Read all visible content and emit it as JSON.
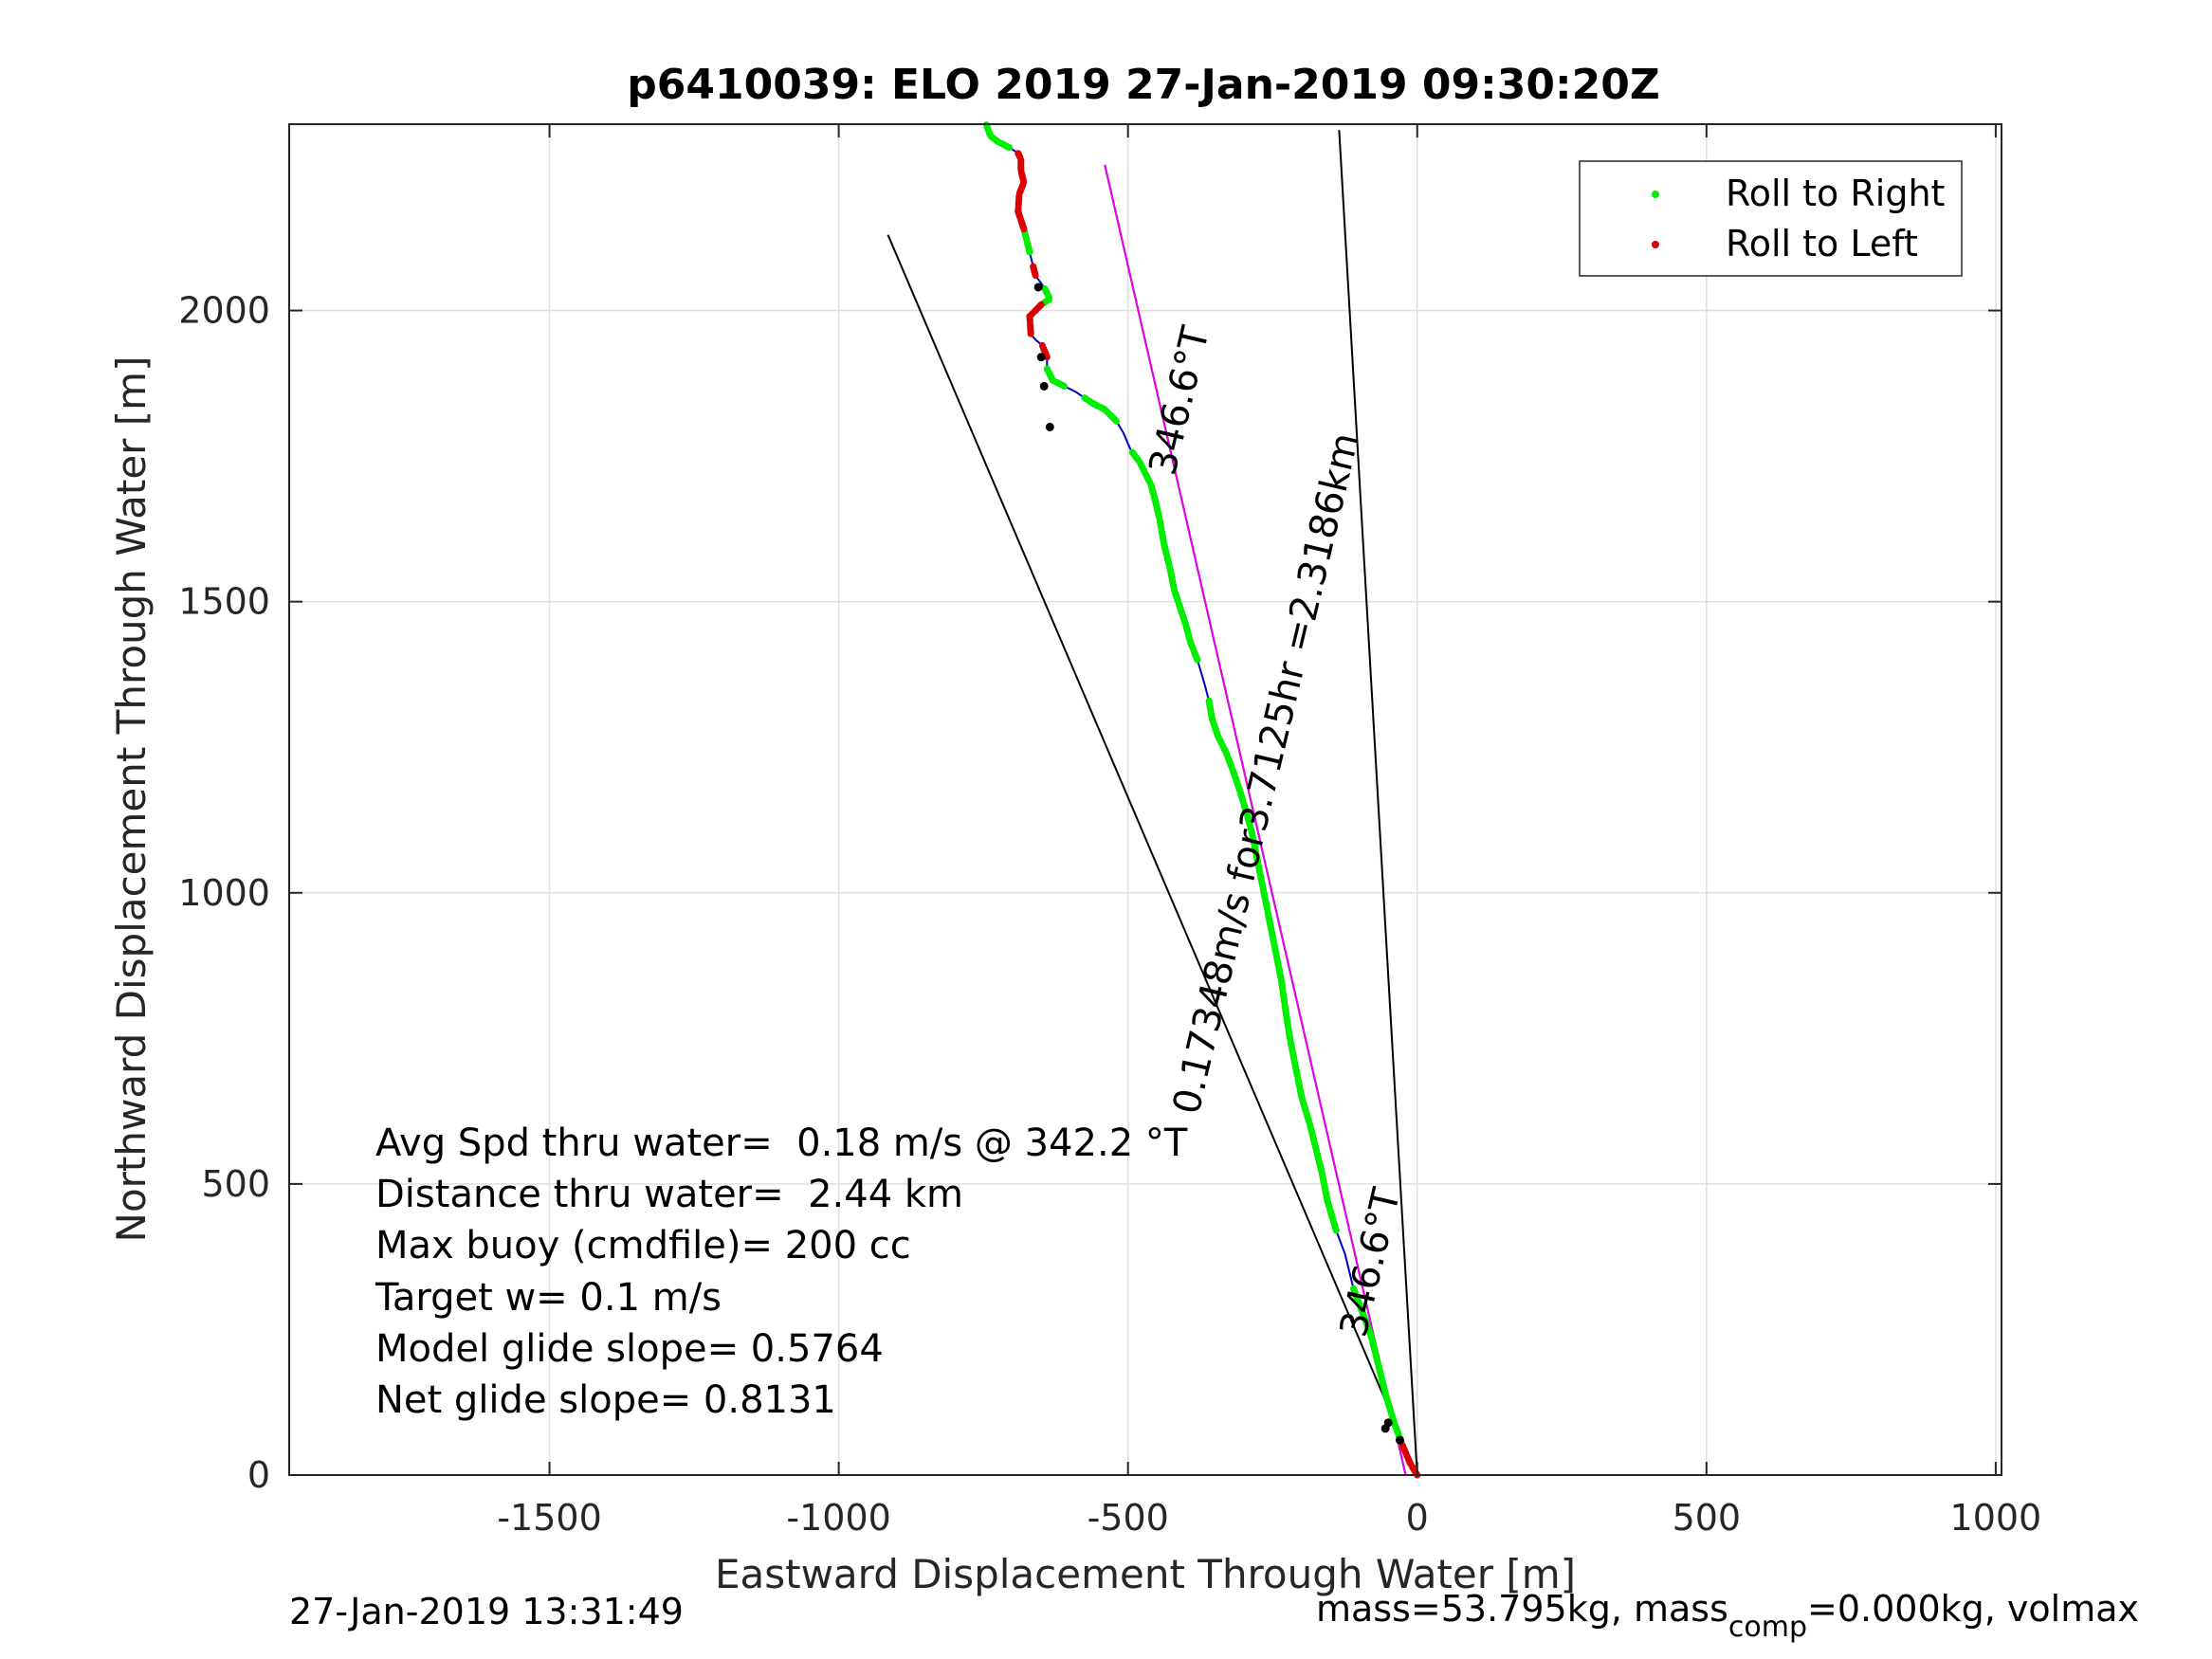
{
  "chart_data": {
    "type": "line",
    "title": "p6410039: ELO 2019 27-Jan-2019 09:30:20Z",
    "xlabel": "Eastward Displacement Through Water [m]",
    "ylabel": "Northward Displacement Through Water [m]",
    "xlim": [
      -1950,
      1010
    ],
    "ylim": [
      0,
      2320
    ],
    "xticks": [
      -1500,
      -1000,
      -500,
      0,
      500,
      1000
    ],
    "yticks": [
      0,
      500,
      1000,
      1500,
      2000
    ],
    "grid": true,
    "legend_position": "top-right",
    "legend": [
      {
        "label": "Roll to Right",
        "color": "#00ee00"
      },
      {
        "label": "Roll to Left",
        "color": "#dd0000"
      }
    ],
    "track": {
      "x": [
        0,
        -12,
        -25,
        -40,
        -55,
        -70,
        -80,
        -95,
        -110,
        -125,
        -140,
        -155,
        -165,
        -175,
        -185,
        -200,
        -210,
        -220,
        -228,
        -235,
        -245,
        -255,
        -265,
        -275,
        -285,
        -293,
        -305,
        -315,
        -330,
        -345,
        -355,
        -360,
        -368,
        -380,
        -392,
        -400,
        -410,
        -420,
        -428,
        -438,
        -445,
        -452,
        -460,
        -470,
        -480,
        -495,
        -508,
        -520,
        -540,
        -560,
        -575,
        -590,
        -610,
        -630,
        -640,
        -640,
        -648,
        -660,
        -668,
        -670,
        -650,
        -635,
        -645,
        -660,
        -665,
        -670,
        -680,
        -690,
        -688,
        -680,
        -685,
        -685,
        -690,
        -705,
        -725,
        -738,
        -745
      ],
      "y": [
        0,
        20,
        50,
        90,
        140,
        200,
        240,
        280,
        320,
        380,
        420,
        470,
        520,
        560,
        600,
        650,
        700,
        750,
        800,
        850,
        900,
        950,
        1000,
        1050,
        1100,
        1130,
        1170,
        1200,
        1240,
        1270,
        1300,
        1330,
        1360,
        1400,
        1430,
        1460,
        1490,
        1520,
        1560,
        1600,
        1640,
        1670,
        1700,
        1720,
        1740,
        1760,
        1790,
        1810,
        1830,
        1840,
        1850,
        1860,
        1870,
        1880,
        1900,
        1920,
        1940,
        1950,
        1960,
        1990,
        2010,
        2020,
        2040,
        2060,
        2080,
        2100,
        2140,
        2170,
        2200,
        2220,
        2240,
        2260,
        2270,
        2280,
        2290,
        2300,
        2320
      ]
    },
    "roll_right_segments": [
      [
        2,
        8
      ],
      [
        10,
        21
      ],
      [
        21,
        31
      ],
      [
        33,
        45
      ],
      [
        47,
        50
      ],
      [
        52,
        54
      ],
      [
        60,
        62
      ],
      [
        65,
        67
      ],
      [
        73,
        76
      ]
    ],
    "roll_left_segments": [
      [
        0,
        2
      ],
      [
        55,
        56
      ],
      [
        58,
        60
      ],
      [
        63,
        64
      ],
      [
        66,
        72
      ]
    ],
    "vertex_points": [
      [
        -30,
        60
      ],
      [
        -55,
        80
      ],
      [
        -655,
        2040
      ],
      [
        -650,
        1920
      ],
      [
        -645,
        1870
      ],
      [
        -635,
        1800
      ],
      [
        -50,
        90
      ]
    ],
    "reference_lines": [
      {
        "from": [
          0,
          0
        ],
        "to": [
          -915,
          2130
        ],
        "color": "#000000"
      },
      {
        "from": [
          0,
          0
        ],
        "to": [
          -135,
          2310
        ],
        "color": "#000000"
      },
      {
        "from": [
          -20,
          0
        ],
        "to": [
          -540,
          2250
        ],
        "color": "#000000"
      },
      {
        "from": [
          -20,
          0
        ],
        "to": [
          -540,
          2250
        ],
        "color": "#ee00ee"
      }
    ],
    "line_labels": [
      {
        "text": "346.6°T",
        "at": [
          -390,
          1840
        ],
        "angle": -76.7
      },
      {
        "text": "0.17348m/s for3.7125hr =2.3186km",
        "at": [
          -240,
          1200
        ],
        "angle": -76.7
      },
      {
        "text": "346.6°T",
        "at": [
          -60,
          360
        ],
        "angle": -76.7
      }
    ]
  },
  "annotations": [
    "Avg Spd thru water=  0.18 m/s @ 342.2 °T",
    "Distance thru water=  2.44 km",
    "Max buoy (cmdfile)= 200 cc",
    "Target w= 0.1 m/s",
    "Model glide slope= 0.5764",
    "Net glide slope= 0.8131"
  ],
  "footer": {
    "timestamp": "27-Jan-2019 13:31:49",
    "mass_text": "mass=53.795kg, mass",
    "mass_sub": "comp",
    "mass_rest": "=0.000kg, volmax"
  },
  "colors": {
    "track": "#0000cc",
    "roll_right": "#00ee00",
    "roll_left": "#dd0000",
    "vertex": "#000000",
    "heading_line": "#ee00ee"
  }
}
